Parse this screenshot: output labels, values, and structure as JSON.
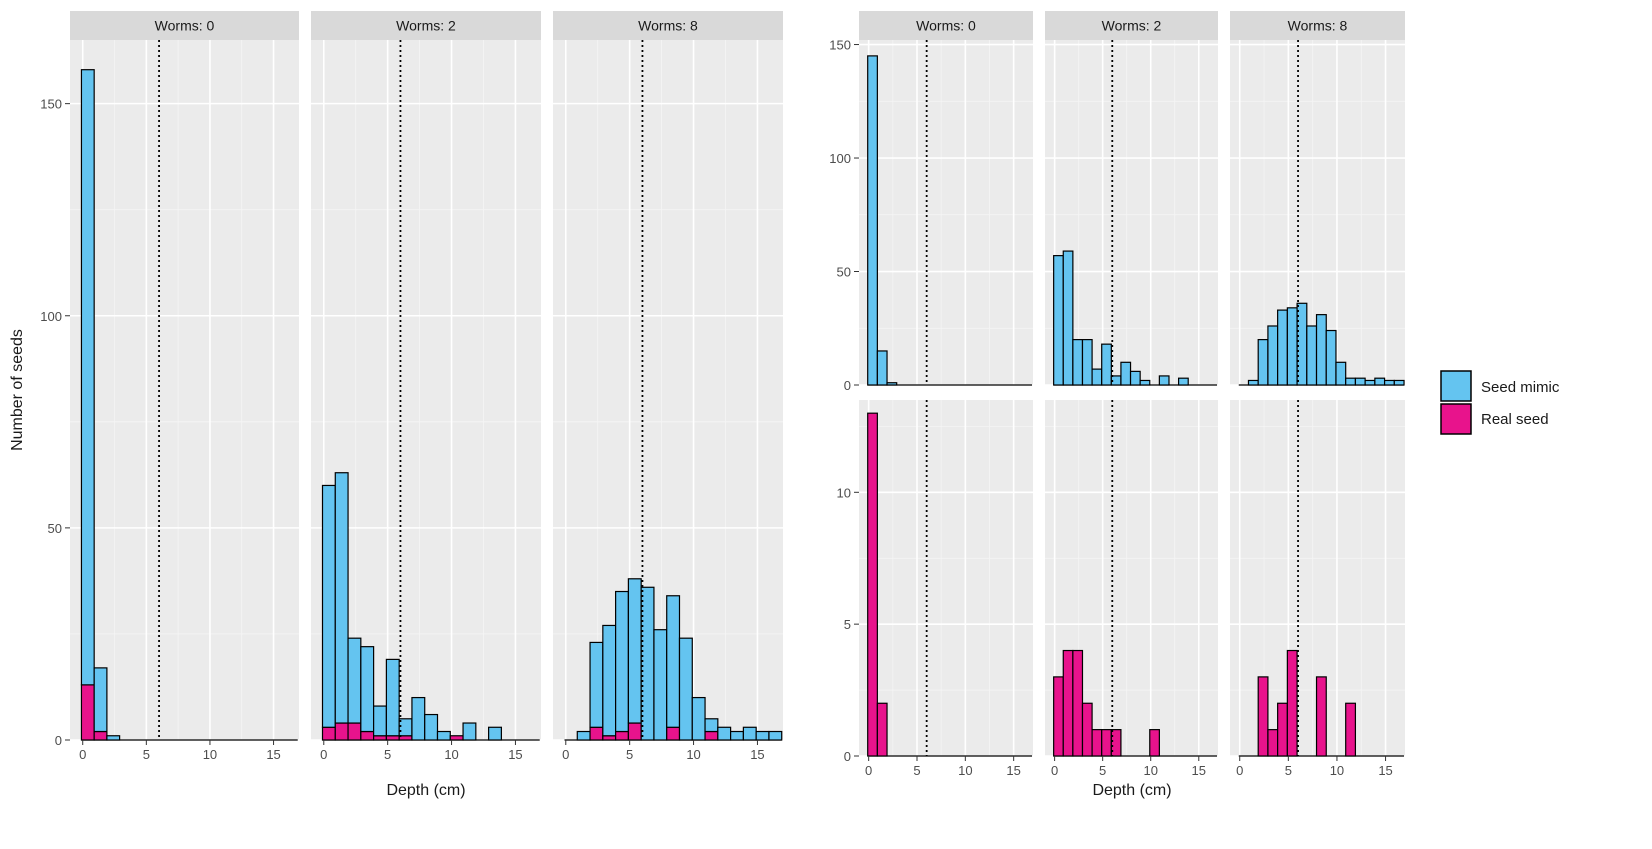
{
  "chart_data": [
    {
      "type": "bar",
      "stacked": true,
      "facet_label": "Worms",
      "xlabel": "Depth (cm)",
      "ylabel": "Number of seeds",
      "xlim": [
        -1,
        17
      ],
      "xticks": [
        0,
        5,
        10,
        15
      ],
      "ylim": [
        0,
        165
      ],
      "yticks": [
        0,
        50,
        100,
        150
      ],
      "grid": true,
      "reference_line_x": 6,
      "series_colors": {
        "Seed mimic": "#64c4f0",
        "Real seed": "#e8138c"
      },
      "panels": [
        {
          "strip": "Worms: 0",
          "x": [
            0.4,
            1.4,
            2.4,
            3.4,
            4.4,
            5.4,
            6.4,
            7.4,
            8.4,
            9.4,
            10.4,
            11.4,
            12.4,
            13.4,
            14.4,
            15.4,
            16.4
          ],
          "series": [
            {
              "name": "Seed mimic",
              "values": [
                145,
                15,
                1,
                0,
                0,
                0,
                0,
                0,
                0,
                0,
                0,
                0,
                0,
                0,
                0,
                0,
                0
              ]
            },
            {
              "name": "Real seed",
              "values": [
                13,
                2,
                0,
                0,
                0,
                0,
                0,
                0,
                0,
                0,
                0,
                0,
                0,
                0,
                0,
                0,
                0
              ]
            }
          ]
        },
        {
          "strip": "Worms: 2",
          "x": [
            0.4,
            1.4,
            2.4,
            3.4,
            4.4,
            5.4,
            6.4,
            7.4,
            8.4,
            9.4,
            10.4,
            11.4,
            12.4,
            13.4,
            14.4,
            15.4,
            16.4
          ],
          "series": [
            {
              "name": "Seed mimic",
              "values": [
                57,
                59,
                20,
                20,
                7,
                18,
                4,
                10,
                6,
                2,
                0,
                4,
                0,
                3,
                0,
                0,
                0
              ]
            },
            {
              "name": "Real seed",
              "values": [
                3,
                4,
                4,
                2,
                1,
                1,
                1,
                0,
                0,
                0,
                1,
                0,
                0,
                0,
                0,
                0,
                0
              ]
            }
          ]
        },
        {
          "strip": "Worms: 8",
          "x": [
            0.4,
            1.4,
            2.4,
            3.4,
            4.4,
            5.4,
            6.4,
            7.4,
            8.4,
            9.4,
            10.4,
            11.4,
            12.4,
            13.4,
            14.4,
            15.4,
            16.4
          ],
          "series": [
            {
              "name": "Seed mimic",
              "values": [
                0,
                2,
                20,
                26,
                33,
                34,
                36,
                26,
                31,
                24,
                10,
                3,
                3,
                2,
                3,
                2,
                2
              ]
            },
            {
              "name": "Real seed",
              "values": [
                0,
                0,
                3,
                1,
                2,
                4,
                0,
                0,
                3,
                0,
                0,
                2,
                0,
                0,
                0,
                0,
                0
              ]
            }
          ]
        }
      ]
    },
    {
      "type": "bar",
      "facet_label": "Worms",
      "xlabel": "Depth (cm)",
      "xlim": [
        -1,
        17
      ],
      "xticks": [
        0,
        5,
        10,
        15
      ],
      "grid": true,
      "reference_line_x": 6,
      "rows": [
        {
          "name": "Seed mimic",
          "color": "#64c4f0",
          "ylim": [
            0,
            152
          ],
          "yticks": [
            0,
            50,
            100,
            150
          ],
          "panels": [
            {
              "strip": "Worms: 0",
              "x": [
                0.4,
                1.4,
                2.4,
                3.4,
                4.4,
                5.4,
                6.4,
                7.4,
                8.4,
                9.4,
                10.4,
                11.4,
                12.4,
                13.4,
                14.4,
                15.4,
                16.4
              ],
              "values": [
                145,
                15,
                1,
                0,
                0,
                0,
                0,
                0,
                0,
                0,
                0,
                0,
                0,
                0,
                0,
                0,
                0
              ]
            },
            {
              "strip": "Worms: 2",
              "x": [
                0.4,
                1.4,
                2.4,
                3.4,
                4.4,
                5.4,
                6.4,
                7.4,
                8.4,
                9.4,
                10.4,
                11.4,
                12.4,
                13.4,
                14.4,
                15.4,
                16.4
              ],
              "values": [
                57,
                59,
                20,
                20,
                7,
                18,
                4,
                10,
                6,
                2,
                0,
                4,
                0,
                3,
                0,
                0,
                0
              ]
            },
            {
              "strip": "Worms: 8",
              "x": [
                0.4,
                1.4,
                2.4,
                3.4,
                4.4,
                5.4,
                6.4,
                7.4,
                8.4,
                9.4,
                10.4,
                11.4,
                12.4,
                13.4,
                14.4,
                15.4,
                16.4
              ],
              "values": [
                0,
                2,
                20,
                26,
                33,
                34,
                36,
                26,
                31,
                24,
                10,
                3,
                3,
                2,
                3,
                2,
                2
              ]
            }
          ]
        },
        {
          "name": "Real seed",
          "color": "#e8138c",
          "ylim": [
            0,
            13.5
          ],
          "yticks": [
            0,
            5,
            10
          ],
          "panels": [
            {
              "strip": "Worms: 0",
              "x": [
                0.4,
                1.4,
                2.4,
                3.4,
                4.4,
                5.4,
                6.4,
                7.4,
                8.4,
                9.4,
                10.4,
                11.4,
                12.4,
                13.4,
                14.4,
                15.4,
                16.4
              ],
              "values": [
                13,
                2,
                0,
                0,
                0,
                0,
                0,
                0,
                0,
                0,
                0,
                0,
                0,
                0,
                0,
                0,
                0
              ]
            },
            {
              "strip": "Worms: 2",
              "x": [
                0.4,
                1.4,
                2.4,
                3.4,
                4.4,
                5.4,
                6.4,
                7.4,
                8.4,
                9.4,
                10.4,
                11.4,
                12.4,
                13.4,
                14.4,
                15.4,
                16.4
              ],
              "values": [
                3,
                4,
                4,
                2,
                1,
                1,
                1,
                0,
                0,
                0,
                1,
                0,
                0,
                0,
                0,
                0,
                0
              ]
            },
            {
              "strip": "Worms: 8",
              "x": [
                0.4,
                1.4,
                2.4,
                3.4,
                4.4,
                5.4,
                6.4,
                7.4,
                8.4,
                9.4,
                10.4,
                11.4,
                12.4,
                13.4,
                14.4,
                15.4,
                16.4
              ],
              "values": [
                0,
                0,
                3,
                1,
                2,
                4,
                0,
                0,
                3,
                0,
                0,
                2,
                0,
                0,
                0,
                0,
                0
              ]
            }
          ]
        }
      ]
    }
  ],
  "legend": {
    "items": [
      {
        "label": "Seed mimic",
        "color": "#64c4f0"
      },
      {
        "label": "Real seed",
        "color": "#e8138c"
      }
    ]
  }
}
